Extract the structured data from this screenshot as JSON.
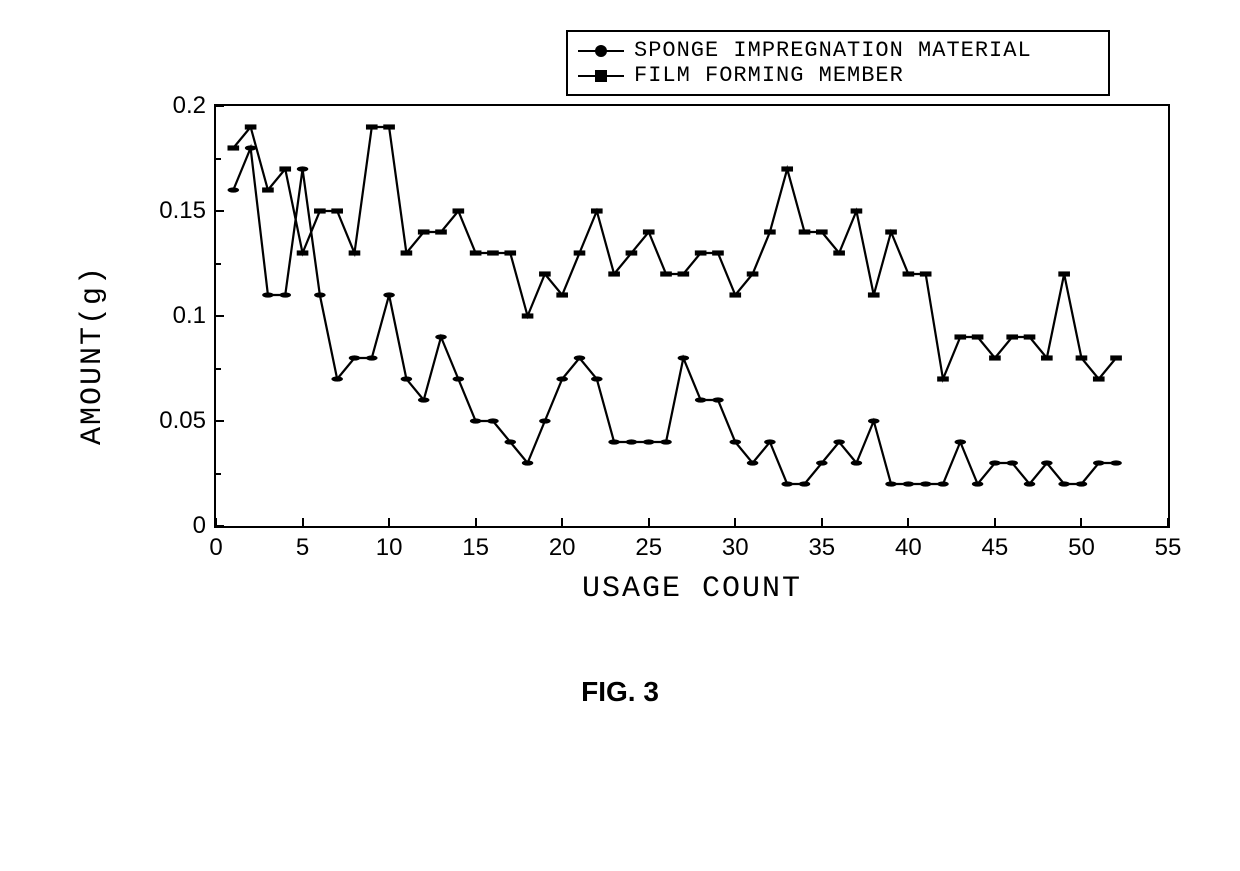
{
  "chart": {
    "type": "line",
    "title_caption": "FIG. 3",
    "xlabel": "USAGE COUNT",
    "ylabel": "AMOUNT(g)",
    "xlim": [
      0,
      55
    ],
    "ylim": [
      0,
      0.2
    ],
    "xticks": [
      0,
      5,
      10,
      15,
      20,
      25,
      30,
      35,
      40,
      45,
      50,
      55
    ],
    "yticks": [
      0,
      0.05,
      0.1,
      0.15,
      0.2
    ],
    "ytick_minor_step": 0.025,
    "line_color": "#000000",
    "line_width": 2,
    "marker_size": 11,
    "background_color": "#ffffff",
    "border_color": "#000000",
    "axis_fontsize": 30,
    "tick_fontsize": 24,
    "legend": {
      "position": "top-right-outside",
      "border_color": "#000000",
      "font_family": "Courier New",
      "fontsize": 22,
      "items": [
        {
          "label": "SPONGE IMPREGNATION MATERIAL",
          "marker": "circle",
          "color": "#000000"
        },
        {
          "label": "FILM FORMING MEMBER",
          "marker": "square",
          "color": "#000000"
        }
      ]
    },
    "series": [
      {
        "name": "SPONGE IMPREGNATION MATERIAL",
        "marker": "circle",
        "color": "#000000",
        "x": [
          1,
          2,
          3,
          4,
          5,
          6,
          7,
          8,
          9,
          10,
          11,
          12,
          13,
          14,
          15,
          16,
          17,
          18,
          19,
          20,
          21,
          22,
          23,
          24,
          25,
          26,
          27,
          28,
          29,
          30,
          31,
          32,
          33,
          34,
          35,
          36,
          37,
          38,
          39,
          40,
          41,
          42,
          43,
          44,
          45,
          46,
          47,
          48,
          49,
          50,
          51,
          52
        ],
        "y": [
          0.16,
          0.18,
          0.11,
          0.11,
          0.17,
          0.11,
          0.07,
          0.08,
          0.08,
          0.11,
          0.07,
          0.06,
          0.09,
          0.07,
          0.05,
          0.05,
          0.04,
          0.03,
          0.05,
          0.07,
          0.08,
          0.07,
          0.04,
          0.04,
          0.04,
          0.04,
          0.08,
          0.06,
          0.06,
          0.04,
          0.03,
          0.04,
          0.02,
          0.02,
          0.03,
          0.04,
          0.03,
          0.05,
          0.02,
          0.02,
          0.02,
          0.02,
          0.04,
          0.02,
          0.03,
          0.03,
          0.02,
          0.03,
          0.02,
          0.02,
          0.03,
          0.03
        ]
      },
      {
        "name": "FILM FORMING MEMBER",
        "marker": "square",
        "color": "#000000",
        "x": [
          1,
          2,
          3,
          4,
          5,
          6,
          7,
          8,
          9,
          10,
          11,
          12,
          13,
          14,
          15,
          16,
          17,
          18,
          19,
          20,
          21,
          22,
          23,
          24,
          25,
          26,
          27,
          28,
          29,
          30,
          31,
          32,
          33,
          34,
          35,
          36,
          37,
          38,
          39,
          40,
          41,
          42,
          43,
          44,
          45,
          46,
          47,
          48,
          49,
          50,
          51,
          52
        ],
        "y": [
          0.18,
          0.19,
          0.16,
          0.17,
          0.13,
          0.15,
          0.15,
          0.13,
          0.19,
          0.19,
          0.13,
          0.14,
          0.14,
          0.15,
          0.13,
          0.13,
          0.13,
          0.1,
          0.12,
          0.11,
          0.13,
          0.15,
          0.12,
          0.13,
          0.14,
          0.12,
          0.12,
          0.13,
          0.13,
          0.11,
          0.12,
          0.14,
          0.17,
          0.14,
          0.14,
          0.13,
          0.15,
          0.11,
          0.14,
          0.12,
          0.12,
          0.07,
          0.09,
          0.09,
          0.08,
          0.09,
          0.09,
          0.08,
          0.12,
          0.08,
          0.07,
          0.08
        ]
      }
    ]
  }
}
